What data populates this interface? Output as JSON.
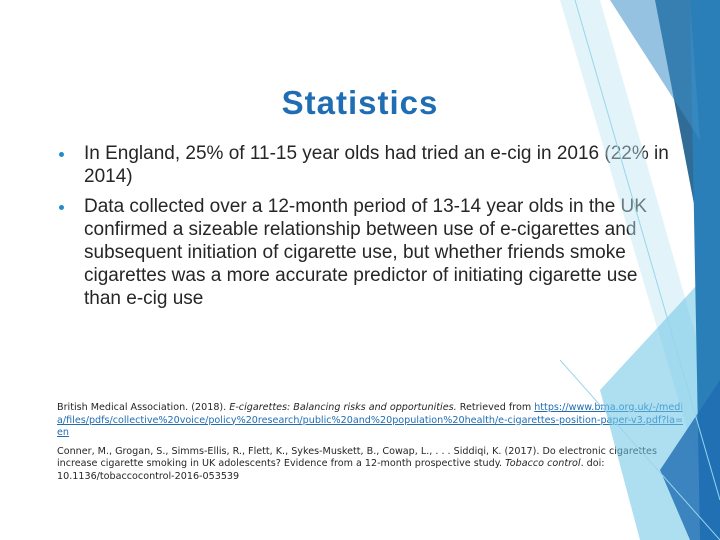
{
  "title": "Statistics",
  "bullets": [
    "In England, 25% of 11-15 year olds had tried an e-cig in 2016 (22% in 2014)",
    "Data collected over a 12-month period of 13-14 year olds in the UK confirmed a sizeable relationship between use of e-cigarettes and subsequent initiation of cigarette use, but whether friends smoke cigarettes was a more accurate predictor of initiating cigarette use than e-cig use"
  ],
  "references": [
    {
      "before": "British Medical Association. (2018). ",
      "italic": "E-cigarettes: Balancing risks and opportunities.",
      "after": " Retrieved from ",
      "link": "https://www.bma.org.uk/-/media/files/pdfs/collective%20voice/policy%20research/public%20and%20population%20health/e-cigarettes-position-paper-v3.pdf?la=en"
    },
    {
      "before": "Conner, M., Grogan, S., Simms-Ellis, R., Flett, K., Sykes-Muskett, B., Cowap, L., . . . Siddiqi, K. (2017). Do electronic cigarettes increase cigarette smoking in UK adolescents? Evidence from a 12-month prospective study. ",
      "italic": "Tobacco control",
      "after": ". doi: 10.1136/tobaccocontrol-2016-053539"
    }
  ]
}
